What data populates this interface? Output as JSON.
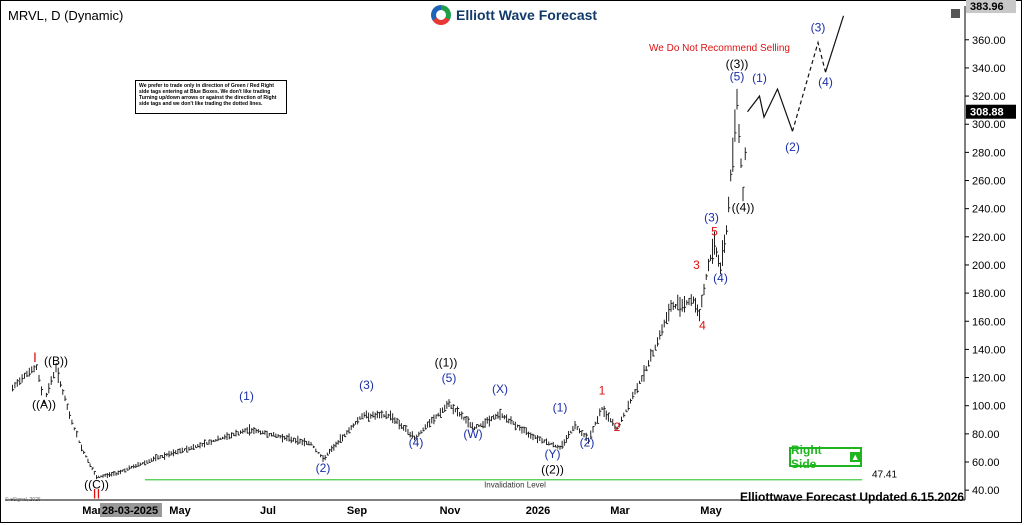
{
  "header": {
    "symbol_title": "MRVL, D (Dynamic)",
    "logo_text": "Elliott Wave Forecast"
  },
  "notice_text": "We prefer to trade only in direction of Green / Red Right side tags entering at Blue Boxes. We don't like trading Turning up/down arrows or against the direction of Right side tags and we don't like trading the dotted lines.",
  "no_sell_text": "We Do Not Recommend Selling",
  "right_side_text": "Right Side",
  "footer_text": "Elliottwave Forecast Updated 6.15.2026",
  "copyright_text": "© eSignal, 2026",
  "colors": {
    "accent_red": "#dd1111",
    "wave_blue": "#1a2fa8",
    "green": "#1fb51f",
    "invalidation_line": "#44cc44"
  },
  "chart_data": {
    "type": "ohlc",
    "ylim": [
      33,
      384
    ],
    "y_ticks": [
      40,
      60,
      80,
      100,
      120,
      140,
      160,
      180,
      200,
      220,
      240,
      260,
      280,
      300,
      320,
      340,
      360
    ],
    "x_ticks": [
      "Mar",
      "28-03-2025",
      "May",
      "Jul",
      "Sep",
      "Nov",
      "2026",
      "Mar",
      "May"
    ],
    "price_labels": [
      {
        "text": "383.96",
        "value": 383.96,
        "style": "grey"
      },
      {
        "text": "308.88",
        "value": 308.88,
        "style": "black"
      },
      {
        "text": "47.41",
        "value": 47.41,
        "style": "plain"
      }
    ],
    "invalidation": {
      "value": 47.41,
      "label": "Invalidation Level"
    },
    "price_path": [
      {
        "date": "2025-02-10",
        "price": 112
      },
      {
        "date": "2025-02-18",
        "price": 122
      },
      {
        "date": "2025-02-26",
        "price": 127
      },
      {
        "date": "2025-03-03",
        "price": 103
      },
      {
        "date": "2025-03-11",
        "price": 127
      },
      {
        "date": "2025-03-20",
        "price": 93
      },
      {
        "date": "2025-03-28",
        "price": 70
      },
      {
        "date": "2025-04-07",
        "price": 49
      },
      {
        "date": "2025-04-20",
        "price": 52
      },
      {
        "date": "2025-05-15",
        "price": 62
      },
      {
        "date": "2025-06-15",
        "price": 72
      },
      {
        "date": "2025-07-18",
        "price": 83
      },
      {
        "date": "2025-08-28",
        "price": 73
      },
      {
        "date": "2025-09-05",
        "price": 62
      },
      {
        "date": "2025-10-01",
        "price": 93
      },
      {
        "date": "2025-10-20",
        "price": 93
      },
      {
        "date": "2025-11-05",
        "price": 77
      },
      {
        "date": "2025-11-28",
        "price": 101
      },
      {
        "date": "2025-12-15",
        "price": 84
      },
      {
        "date": "2026-01-01",
        "price": 94
      },
      {
        "date": "2026-01-20",
        "price": 80
      },
      {
        "date": "2026-02-10",
        "price": 70
      },
      {
        "date": "2026-02-20",
        "price": 86
      },
      {
        "date": "2026-03-01",
        "price": 76
      },
      {
        "date": "2026-03-10",
        "price": 98
      },
      {
        "date": "2026-03-20",
        "price": 83
      },
      {
        "date": "2026-04-10",
        "price": 130
      },
      {
        "date": "2026-04-25",
        "price": 170
      },
      {
        "date": "2026-05-10",
        "price": 175
      },
      {
        "date": "2026-05-14",
        "price": 165
      },
      {
        "date": "2026-05-20",
        "price": 200
      },
      {
        "date": "2026-05-24",
        "price": 215
      },
      {
        "date": "2026-05-28",
        "price": 198
      },
      {
        "date": "2026-06-01",
        "price": 225
      },
      {
        "date": "2026-06-08",
        "price": 318
      },
      {
        "date": "2026-06-12",
        "price": 250
      },
      {
        "date": "2026-06-15",
        "price": 308.88
      }
    ],
    "projection": {
      "solid": [
        {
          "date": "2026-06-15",
          "price": 308.88
        },
        {
          "date": "2026-06-23",
          "price": 320
        },
        {
          "date": "2026-06-26",
          "price": 305
        },
        {
          "date": "2026-07-05",
          "price": 325
        },
        {
          "date": "2026-07-15",
          "price": 295
        }
      ],
      "dashed": [
        {
          "date": "2026-07-15",
          "price": 295
        },
        {
          "date": "2026-08-01",
          "price": 358
        },
        {
          "date": "2026-08-06",
          "price": 337
        }
      ],
      "final": [
        {
          "date": "2026-08-06",
          "price": 337
        },
        {
          "date": "2026-08-18",
          "price": 377
        }
      ]
    },
    "wave_labels": [
      {
        "text": "I",
        "date": "2025-02-25",
        "price": 131,
        "color": "red"
      },
      {
        "text": "((A))",
        "date": "2025-03-03",
        "price": 98,
        "color": "black"
      },
      {
        "text": "((B))",
        "date": "2025-03-11",
        "price": 129,
        "color": "black"
      },
      {
        "text": "((C))",
        "date": "2025-04-07",
        "price": 41,
        "color": "black"
      },
      {
        "text": "II",
        "date": "2025-04-07",
        "price": 34,
        "color": "red"
      },
      {
        "text": "(1)",
        "date": "2025-07-16",
        "price": 104,
        "color": "blue"
      },
      {
        "text": "(2)",
        "date": "2025-09-05",
        "price": 53,
        "color": "blue"
      },
      {
        "text": "(3)",
        "date": "2025-10-04",
        "price": 112,
        "color": "blue"
      },
      {
        "text": "(4)",
        "date": "2025-11-06",
        "price": 71,
        "color": "blue"
      },
      {
        "text": "((1))",
        "date": "2025-11-26",
        "price": 128,
        "color": "black"
      },
      {
        "text": "(5)",
        "date": "2025-11-28",
        "price": 117,
        "color": "blue"
      },
      {
        "text": "(W)",
        "date": "2025-12-14",
        "price": 77,
        "color": "blue"
      },
      {
        "text": "(X)",
        "date": "2026-01-01",
        "price": 109,
        "color": "blue"
      },
      {
        "text": "(Y)",
        "date": "2026-02-05",
        "price": 63,
        "color": "blue"
      },
      {
        "text": "((2))",
        "date": "2026-02-05",
        "price": 52,
        "color": "black"
      },
      {
        "text": "(1)",
        "date": "2026-02-10",
        "price": 96,
        "color": "blue"
      },
      {
        "text": "(2)",
        "date": "2026-02-28",
        "price": 71,
        "color": "blue"
      },
      {
        "text": "1",
        "date": "2026-03-10",
        "price": 108,
        "color": "red"
      },
      {
        "text": "2",
        "date": "2026-03-20",
        "price": 82,
        "color": "red"
      },
      {
        "text": "3",
        "date": "2026-05-12",
        "price": 197,
        "color": "red"
      },
      {
        "text": "4",
        "date": "2026-05-16",
        "price": 154,
        "color": "red"
      },
      {
        "text": "5",
        "date": "2026-05-24",
        "price": 221,
        "color": "red"
      },
      {
        "text": "(3)",
        "date": "2026-05-22",
        "price": 231,
        "color": "blue"
      },
      {
        "text": "(4)",
        "date": "2026-05-28",
        "price": 188,
        "color": "blue"
      },
      {
        "text": "((3))",
        "date": "2026-06-08",
        "price": 340,
        "color": "black"
      },
      {
        "text": "(5)",
        "date": "2026-06-08",
        "price": 331,
        "color": "blue"
      },
      {
        "text": "((4))",
        "date": "2026-06-12",
        "price": 238,
        "color": "black"
      },
      {
        "text": "(1)",
        "date": "2026-06-23",
        "price": 330,
        "color": "blue"
      },
      {
        "text": "(2)",
        "date": "2026-07-15",
        "price": 281,
        "color": "blue"
      },
      {
        "text": "(3)",
        "date": "2026-08-01",
        "price": 366,
        "color": "blue"
      },
      {
        "text": "(4)",
        "date": "2026-08-06",
        "price": 327,
        "color": "blue"
      }
    ]
  }
}
